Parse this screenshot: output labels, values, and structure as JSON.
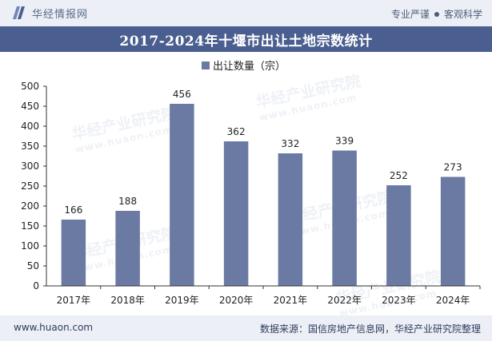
{
  "header": {
    "brand_name": "华经情报网",
    "slogan_left": "专业严谨",
    "slogan_right": "客观科学"
  },
  "watermark": {
    "text": "华经产业研究院",
    "url": "www.huaon.com"
  },
  "footer": {
    "website": "www.huaon.com",
    "source": "数据来源：国信房地产信息网，华经产业研究院整理"
  },
  "colors": {
    "bar": "#6a7aa3",
    "title_band": "#4a5f8f",
    "header_band": "#eceff5"
  },
  "chart_data": {
    "type": "bar",
    "title": "2017-2024年十堰市出让土地宗数统计",
    "legend": [
      "出让数量（宗）"
    ],
    "legend_position": "top-center",
    "categories": [
      "2017年",
      "2018年",
      "2019年",
      "2020年",
      "2021年",
      "2022年",
      "2023年",
      "2024年"
    ],
    "values": [
      166,
      188,
      456,
      362,
      332,
      339,
      252,
      273
    ],
    "ylim": [
      0,
      500
    ],
    "yticks": [
      0,
      50,
      100,
      150,
      200,
      250,
      300,
      350,
      400,
      450,
      500
    ],
    "xlabel": "",
    "ylabel": "",
    "grid": false
  }
}
